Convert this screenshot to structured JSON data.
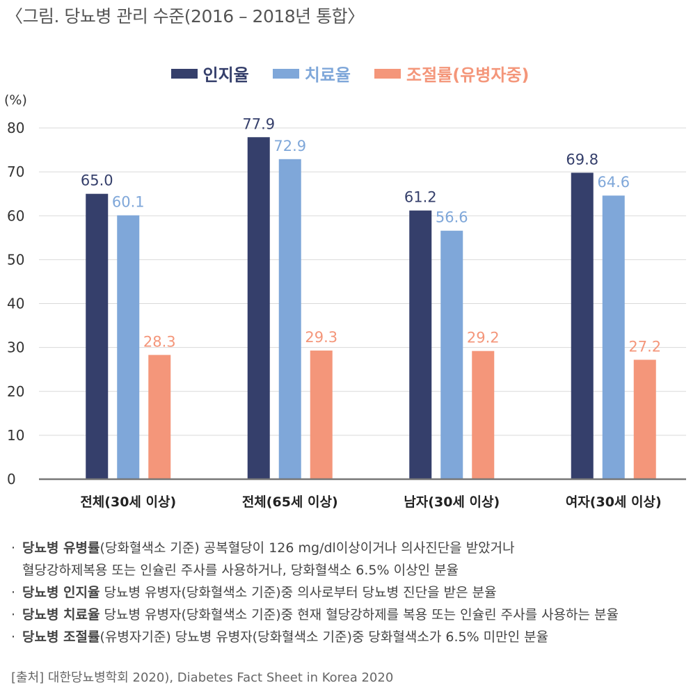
{
  "title": "〈그림. 당뇨병 관리 수준(2016 – 2018년 통합〉",
  "chart_data": {
    "type": "bar",
    "ylabel": "(%)",
    "ylim": [
      0,
      80
    ],
    "yticks": [
      0,
      10,
      20,
      30,
      40,
      50,
      60,
      70,
      80
    ],
    "categories": [
      "전체(30세 이상)",
      "전체(65세 이상)",
      "남자(30세 이상)",
      "여자(30세 이상)"
    ],
    "series": [
      {
        "name": "인지율",
        "color": "#353f6b",
        "values": [
          65.0,
          77.9,
          61.2,
          69.8
        ],
        "labels": [
          "65.0",
          "77.9",
          "61.2",
          "69.8"
        ]
      },
      {
        "name": "치료율",
        "color": "#7fa7d9",
        "values": [
          60.1,
          72.9,
          56.6,
          64.6
        ],
        "labels": [
          "60.1",
          "72.9",
          "56.6",
          "64.6"
        ]
      },
      {
        "name": "조절률(유병자중)",
        "color": "#f4967a",
        "values": [
          28.3,
          29.3,
          29.2,
          27.2
        ],
        "labels": [
          "28.3",
          "29.3",
          "29.2",
          "27.2"
        ]
      }
    ],
    "grid": true,
    "legend": "top-center"
  },
  "notes": [
    {
      "bullet": "·",
      "term": "당뇨병 유병률",
      "text": "(당화혈색소 기준) 공복혈당이 126 mg/dl이상이거나 의사진단을 받았거나"
    },
    {
      "bullet": "",
      "term": "",
      "text": "혈당강하제복용 또는 인슐린 주사를 사용하거나, 당화혈색소 6.5% 이상인 분율"
    },
    {
      "bullet": "·",
      "term": "당뇨병 인지율",
      "text": " 당뇨병 유병자(당화혈색소 기준)중 의사로부터 당뇨병 진단을 받은 분율"
    },
    {
      "bullet": "·",
      "term": "당뇨병 치료율",
      "text": " 당뇨병 유병자(당화혈색소 기준)중 현재 혈당강하제를 복용 또는 인슐린 주사를 사용하는 분율"
    },
    {
      "bullet": "·",
      "term": "당뇨병 조절률",
      "text": "(유병자기준) 당뇨병 유병자(당화혈색소 기준)중 당화혈색소가 6.5% 미만인 분율"
    }
  ],
  "source": "[출처] 대한당뇨병학회 2020), Diabetes Fact Sheet in Korea 2020"
}
